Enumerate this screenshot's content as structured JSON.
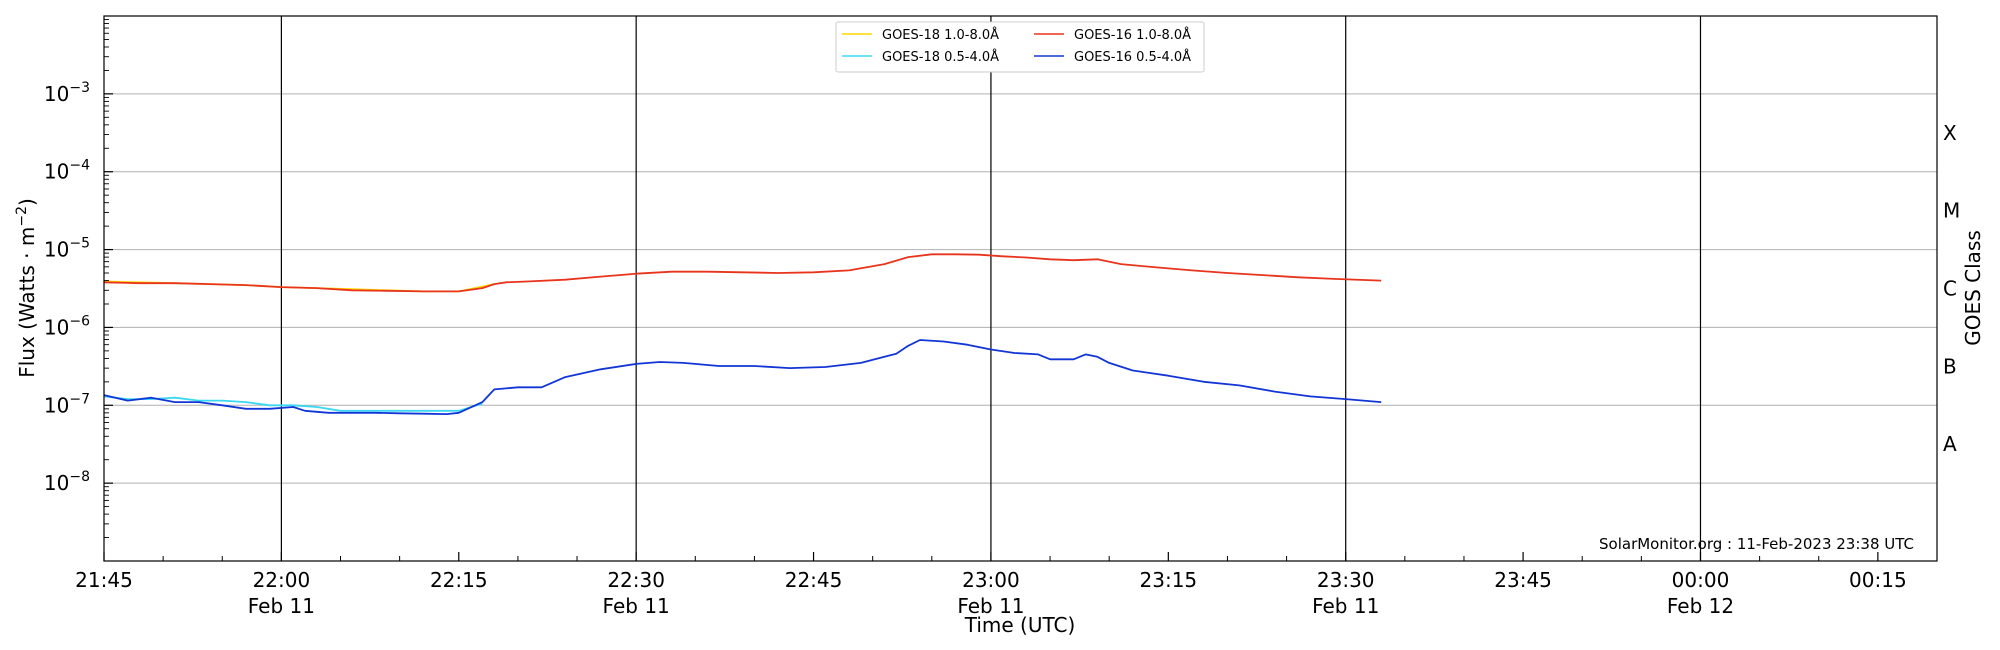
{
  "chart_data": {
    "type": "line",
    "xlabel": "Time (UTC)",
    "ylabel_main": "Flux (Watts · m",
    "ylabel_exp": "−2",
    "ylabel_close": ")",
    "y2label": "GOES Class",
    "ylog": true,
    "ylim": [
      1e-09,
      0.01
    ],
    "xlim": [
      "21:45",
      "00:20"
    ],
    "grid": "horizontal",
    "legend_position": "top-center",
    "credit": "SolarMonitor.org : 11-Feb-2023 23:38 UTC",
    "x_ticks": [
      {
        "t": "21:45",
        "label": "21:45",
        "date": ""
      },
      {
        "t": "22:00",
        "label": "22:00",
        "date": "Feb 11"
      },
      {
        "t": "22:15",
        "label": "22:15",
        "date": ""
      },
      {
        "t": "22:30",
        "label": "22:30",
        "date": "Feb 11"
      },
      {
        "t": "22:45",
        "label": "22:45",
        "date": ""
      },
      {
        "t": "23:00",
        "label": "23:00",
        "date": "Feb 11"
      },
      {
        "t": "23:15",
        "label": "23:15",
        "date": ""
      },
      {
        "t": "23:30",
        "label": "23:30",
        "date": "Feb 11"
      },
      {
        "t": "23:45",
        "label": "23:45",
        "date": ""
      },
      {
        "t": "00:00",
        "label": "00:00",
        "date": "Feb 12"
      },
      {
        "t": "00:15",
        "label": "00:15",
        "date": ""
      }
    ],
    "y_ticks": [
      {
        "exp": -8,
        "label": "10",
        "sup": "−8"
      },
      {
        "exp": -7,
        "label": "10",
        "sup": "−7"
      },
      {
        "exp": -6,
        "label": "10",
        "sup": "−6"
      },
      {
        "exp": -5,
        "label": "10",
        "sup": "−5"
      },
      {
        "exp": -4,
        "label": "10",
        "sup": "−4"
      },
      {
        "exp": -3,
        "label": "10",
        "sup": "−3"
      }
    ],
    "goes_classes": [
      {
        "label": "A",
        "exp": -7.5
      },
      {
        "label": "B",
        "exp": -6.5
      },
      {
        "label": "C",
        "exp": -5.5
      },
      {
        "label": "M",
        "exp": -4.5
      },
      {
        "label": "X",
        "exp": -3.5
      }
    ],
    "vertical_lines": [
      "22:00",
      "22:30",
      "23:00",
      "23:30",
      "00:00"
    ],
    "series": [
      {
        "name": "GOES-18 1.0-8.0Å",
        "color": "#ffd700",
        "x": [
          "21:45",
          "21:48",
          "21:51",
          "21:54",
          "21:57",
          "22:00",
          "22:03",
          "22:06",
          "22:09",
          "22:12",
          "22:15",
          "22:18"
        ],
        "y": [
          3.9e-06,
          3.8e-06,
          3.7e-06,
          3.6e-06,
          3.5e-06,
          3.3e-06,
          3.2e-06,
          3.1e-06,
          3e-06,
          2.9e-06,
          2.9e-06,
          3.6e-06
        ]
      },
      {
        "name": "GOES-18 0.5-4.0Å",
        "color": "#3ad8f2",
        "x": [
          "21:45",
          "21:47",
          "21:49",
          "21:51",
          "21:53",
          "21:55",
          "21:57",
          "21:59",
          "22:01",
          "22:03",
          "22:05",
          "22:07",
          "22:09",
          "22:11",
          "22:13",
          "22:15",
          "22:17"
        ],
        "y": [
          1.3e-07,
          1.2e-07,
          1.2e-07,
          1.25e-07,
          1.15e-07,
          1.15e-07,
          1.1e-07,
          1e-07,
          1e-07,
          9.5e-08,
          8.5e-08,
          8.5e-08,
          8.5e-08,
          8.5e-08,
          8.5e-08,
          8.5e-08,
          1.05e-07
        ]
      },
      {
        "name": "GOES-16 1.0-8.0Å",
        "color": "#e8341c",
        "x": [
          "21:45",
          "21:48",
          "21:51",
          "21:54",
          "21:57",
          "22:00",
          "22:03",
          "22:06",
          "22:09",
          "22:12",
          "22:15",
          "22:17",
          "22:18",
          "22:19",
          "22:21",
          "22:24",
          "22:27",
          "22:30",
          "22:33",
          "22:36",
          "22:39",
          "22:42",
          "22:45",
          "22:48",
          "22:51",
          "22:53",
          "22:55",
          "22:57",
          "22:59",
          "23:01",
          "23:03",
          "23:05",
          "23:07",
          "23:09",
          "23:11",
          "23:14",
          "23:17",
          "23:20",
          "23:23",
          "23:26",
          "23:29",
          "23:33"
        ],
        "y": [
          3.8e-06,
          3.7e-06,
          3.7e-06,
          3.6e-06,
          3.5e-06,
          3.3e-06,
          3.2e-06,
          3e-06,
          2.95e-06,
          2.9e-06,
          2.9e-06,
          3.2e-06,
          3.6e-06,
          3.8e-06,
          3.9e-06,
          4.1e-06,
          4.5e-06,
          4.9e-06,
          5.2e-06,
          5.2e-06,
          5.1e-06,
          5e-06,
          5.1e-06,
          5.4e-06,
          6.5e-06,
          8e-06,
          8.7e-06,
          8.7e-06,
          8.6e-06,
          8.2e-06,
          7.9e-06,
          7.5e-06,
          7.3e-06,
          7.5e-06,
          6.5e-06,
          5.9e-06,
          5.4e-06,
          5e-06,
          4.7e-06,
          4.4e-06,
          4.2e-06,
          4e-06
        ]
      },
      {
        "name": "GOES-16 0.5-4.0Å",
        "color": "#1236d6",
        "x": [
          "21:45",
          "21:47",
          "21:49",
          "21:51",
          "21:53",
          "21:55",
          "21:57",
          "21:59",
          "22:01",
          "22:02",
          "22:04",
          "22:06",
          "22:08",
          "22:10",
          "22:12",
          "22:14",
          "22:15",
          "22:17",
          "22:18",
          "22:20",
          "22:22",
          "22:24",
          "22:27",
          "22:30",
          "22:32",
          "22:34",
          "22:37",
          "22:40",
          "22:43",
          "22:46",
          "22:49",
          "22:52",
          "22:53",
          "22:54",
          "22:56",
          "22:58",
          "23:00",
          "23:02",
          "23:04",
          "23:05",
          "23:07",
          "23:08",
          "23:09",
          "23:10",
          "23:12",
          "23:15",
          "23:18",
          "23:21",
          "23:24",
          "23:27",
          "23:30",
          "23:33"
        ],
        "y": [
          1.35e-07,
          1.15e-07,
          1.25e-07,
          1.1e-07,
          1.1e-07,
          1e-07,
          9e-08,
          9e-08,
          9.5e-08,
          8.5e-08,
          8e-08,
          8e-08,
          8e-08,
          7.9e-08,
          7.8e-08,
          7.7e-08,
          8e-08,
          1.1e-07,
          1.6e-07,
          1.7e-07,
          1.7e-07,
          2.3e-07,
          2.9e-07,
          3.4e-07,
          3.6e-07,
          3.5e-07,
          3.2e-07,
          3.2e-07,
          3e-07,
          3.1e-07,
          3.5e-07,
          4.6e-07,
          5.8e-07,
          6.9e-07,
          6.6e-07,
          6e-07,
          5.2e-07,
          4.7e-07,
          4.5e-07,
          3.9e-07,
          3.9e-07,
          4.5e-07,
          4.2e-07,
          3.5e-07,
          2.8e-07,
          2.4e-07,
          2e-07,
          1.8e-07,
          1.5e-07,
          1.3e-07,
          1.2e-07,
          1.1e-07
        ]
      }
    ],
    "legend_order": [
      0,
      1,
      2,
      3
    ]
  }
}
